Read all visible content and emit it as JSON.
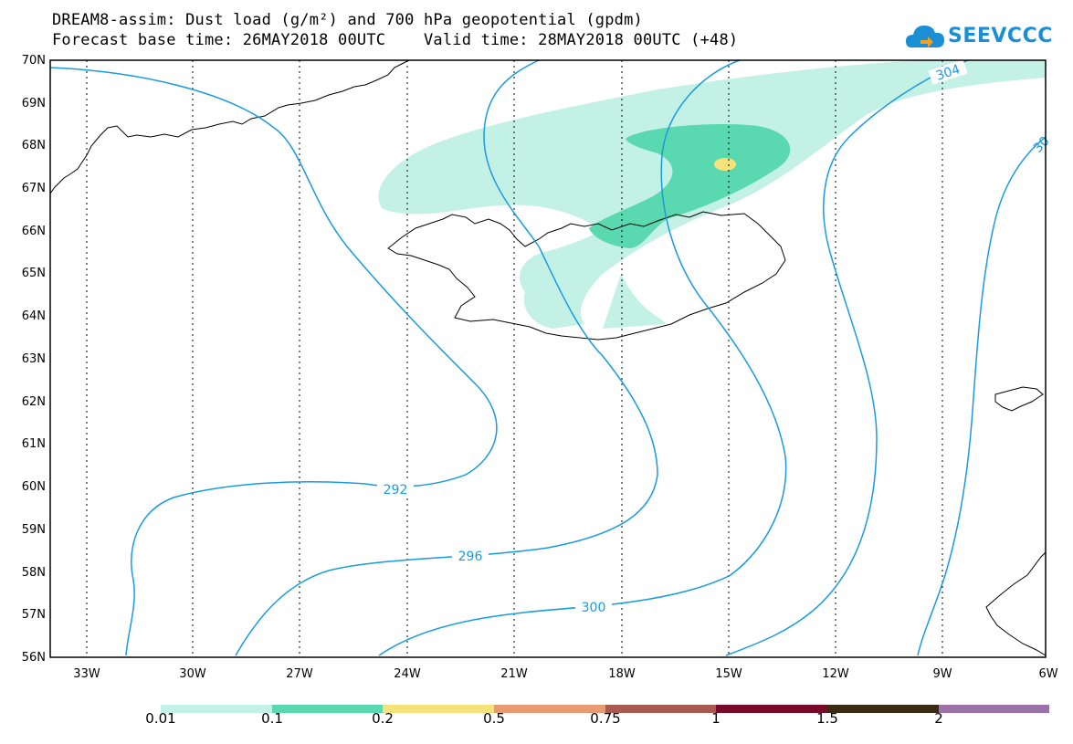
{
  "title_line1": "DREAM8-assim: Dust load (g/m²) and 700 hPa geopotential (gpdm)",
  "title_line2": "Forecast base time: 26MAY2018 00UTC    Valid time: 28MAY2018 00UTC (+48)",
  "logo_text": "SEEVCCC",
  "lat_labels": [
    "70N",
    "69N",
    "68N",
    "67N",
    "66N",
    "65N",
    "64N",
    "63N",
    "62N",
    "61N",
    "60N",
    "59N",
    "58N",
    "57N",
    "56N"
  ],
  "lon_labels": [
    "33W",
    "30W",
    "27W",
    "24W",
    "21W",
    "18W",
    "15W",
    "12W",
    "9W",
    "6W"
  ],
  "contour_labels": {
    "c292": "292",
    "c296": "296",
    "c300": "300",
    "c304": "304",
    "c30": "30"
  },
  "colorbar": {
    "labels": [
      "0.01",
      "0.1",
      "0.2",
      "0.5",
      "0.75",
      "1",
      "1.5",
      "2"
    ],
    "colors": [
      "#c4f1e6",
      "#5ad8b0",
      "#f5e27a",
      "#e89a72",
      "#a85a50",
      "#7a0a2a",
      "#3a2a12",
      "#9a72a8"
    ]
  },
  "dust_colors": {
    "light": "#c4f1e6",
    "medium": "#5ad8b0",
    "high": "#f5e27a"
  },
  "contour_color": "#1a9ae0"
}
